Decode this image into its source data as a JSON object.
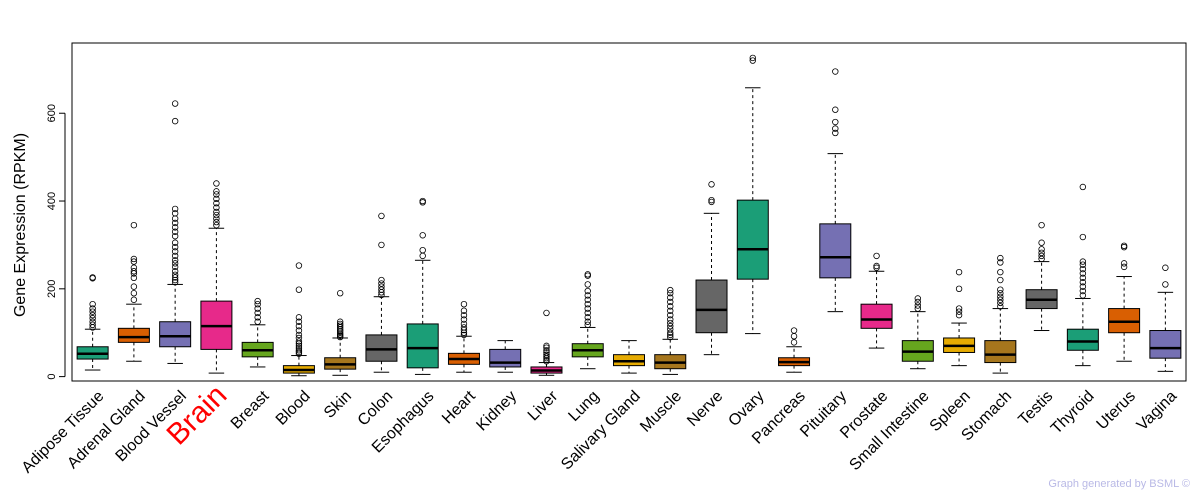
{
  "chart_data": {
    "type": "box",
    "title": "",
    "xlabel": "",
    "ylabel": "Gene Expression (RPKM)",
    "ylim": [
      -10,
      760
    ],
    "yticks": [
      0,
      200,
      400,
      600
    ],
    "highlight": "Brain",
    "highlight_color": "#ff0000",
    "boxes": [
      {
        "name": "Adipose Tissue",
        "color": "#1b9e77",
        "whisker_low": 15,
        "q1": 40,
        "median": 52,
        "q3": 68,
        "whisker_high": 108,
        "outliers": [
          112,
          118,
          125,
          133,
          140,
          148,
          155,
          165,
          224,
          226
        ]
      },
      {
        "name": "Adrenal Gland",
        "color": "#d95f02",
        "whisker_low": 35,
        "q1": 78,
        "median": 90,
        "q3": 110,
        "whisker_high": 165,
        "outliers": [
          175,
          190,
          205,
          225,
          235,
          240,
          248,
          262,
          268,
          345
        ]
      },
      {
        "name": "Blood Vessel",
        "color": "#7570b3",
        "whisker_low": 30,
        "q1": 68,
        "median": 92,
        "q3": 125,
        "whisker_high": 210,
        "outliers": [
          215,
          220,
          226,
          232,
          240,
          250,
          258,
          265,
          275,
          285,
          295,
          305,
          320,
          330,
          340,
          350,
          360,
          372,
          382,
          582,
          622
        ]
      },
      {
        "name": "Brain",
        "color": "#e7298a",
        "whisker_low": 8,
        "q1": 62,
        "median": 115,
        "q3": 172,
        "whisker_high": 338,
        "outliers": [
          345,
          352,
          360,
          368,
          375,
          385,
          395,
          405,
          415,
          422,
          440
        ]
      },
      {
        "name": "Breast",
        "color": "#66a61e",
        "whisker_low": 22,
        "q1": 45,
        "median": 60,
        "q3": 78,
        "whisker_high": 118,
        "outliers": [
          125,
          135,
          145,
          155,
          165,
          172
        ]
      },
      {
        "name": "Blood",
        "color": "#e6ab02",
        "whisker_low": 2,
        "q1": 8,
        "median": 15,
        "q3": 25,
        "whisker_high": 48,
        "outliers": [
          52,
          56,
          60,
          65,
          70,
          75,
          80,
          88,
          95,
          105,
          115,
          125,
          135,
          198,
          253
        ]
      },
      {
        "name": "Skin",
        "color": "#a6761d",
        "whisker_low": 3,
        "q1": 17,
        "median": 28,
        "q3": 43,
        "whisker_high": 88,
        "outliers": [
          90,
          93,
          96,
          100,
          104,
          108,
          112,
          116,
          120,
          125,
          190
        ]
      },
      {
        "name": "Colon",
        "color": "#666666",
        "whisker_low": 10,
        "q1": 35,
        "median": 62,
        "q3": 95,
        "whisker_high": 182,
        "outliers": [
          186,
          192,
          198,
          205,
          212,
          220,
          300,
          366
        ]
      },
      {
        "name": "Esophagus",
        "color": "#1b9e77",
        "whisker_low": 5,
        "q1": 20,
        "median": 65,
        "q3": 120,
        "whisker_high": 265,
        "outliers": [
          275,
          288,
          322,
          397,
          400
        ]
      },
      {
        "name": "Heart",
        "color": "#d95f02",
        "whisker_low": 10,
        "q1": 28,
        "median": 40,
        "q3": 53,
        "whisker_high": 92,
        "outliers": [
          95,
          100,
          106,
          112,
          120,
          130,
          140,
          150,
          165
        ]
      },
      {
        "name": "Kidney",
        "color": "#7570b3",
        "whisker_low": 10,
        "q1": 22,
        "median": 32,
        "q3": 62,
        "whisker_high": 82,
        "outliers": []
      },
      {
        "name": "Liver",
        "color": "#e7298a",
        "whisker_low": 3,
        "q1": 8,
        "median": 14,
        "q3": 22,
        "whisker_high": 32,
        "outliers": [
          35,
          38,
          42,
          46,
          50,
          55,
          60,
          66,
          70,
          145
        ]
      },
      {
        "name": "Lung",
        "color": "#66a61e",
        "whisker_low": 18,
        "q1": 45,
        "median": 60,
        "q3": 75,
        "whisker_high": 112,
        "outliers": [
          118,
          125,
          135,
          145,
          155,
          165,
          175,
          185,
          195,
          210,
          230,
          233
        ]
      },
      {
        "name": "Salivary Gland",
        "color": "#e6ab02",
        "whisker_low": 8,
        "q1": 25,
        "median": 35,
        "q3": 50,
        "whisker_high": 82,
        "outliers": []
      },
      {
        "name": "Muscle",
        "color": "#a6761d",
        "whisker_low": 5,
        "q1": 18,
        "median": 32,
        "q3": 50,
        "whisker_high": 85,
        "outliers": [
          90,
          95,
          100,
          108,
          115,
          122,
          130,
          140,
          150,
          160,
          170,
          180,
          190,
          197
        ]
      },
      {
        "name": "Nerve",
        "color": "#666666",
        "whisker_low": 50,
        "q1": 100,
        "median": 152,
        "q3": 220,
        "whisker_high": 372,
        "outliers": [
          398,
          402,
          438
        ]
      },
      {
        "name": "Ovary",
        "color": "#1b9e77",
        "whisker_low": 98,
        "q1": 222,
        "median": 290,
        "q3": 402,
        "whisker_high": 658,
        "outliers": [
          720,
          726
        ]
      },
      {
        "name": "Pancreas",
        "color": "#d95f02",
        "whisker_low": 10,
        "q1": 25,
        "median": 33,
        "q3": 43,
        "whisker_high": 68,
        "outliers": [
          78,
          92,
          105
        ]
      },
      {
        "name": "Pituitary",
        "color": "#7570b3",
        "whisker_low": 148,
        "q1": 225,
        "median": 272,
        "q3": 348,
        "whisker_high": 508,
        "outliers": [
          555,
          565,
          580,
          608,
          695
        ]
      },
      {
        "name": "Prostate",
        "color": "#e7298a",
        "whisker_low": 65,
        "q1": 110,
        "median": 130,
        "q3": 165,
        "whisker_high": 240,
        "outliers": [
          248,
          252,
          275
        ]
      },
      {
        "name": "Small Intestine",
        "color": "#66a61e",
        "whisker_low": 18,
        "q1": 35,
        "median": 57,
        "q3": 82,
        "whisker_high": 148,
        "outliers": [
          155,
          162,
          170,
          178
        ]
      },
      {
        "name": "Spleen",
        "color": "#e6ab02",
        "whisker_low": 25,
        "q1": 55,
        "median": 70,
        "q3": 88,
        "whisker_high": 122,
        "outliers": [
          140,
          148,
          155,
          200,
          238
        ]
      },
      {
        "name": "Stomach",
        "color": "#a6761d",
        "whisker_low": 8,
        "q1": 32,
        "median": 50,
        "q3": 82,
        "whisker_high": 155,
        "outliers": [
          160,
          168,
          175,
          182,
          190,
          198,
          220,
          238,
          260,
          270
        ]
      },
      {
        "name": "Testis",
        "color": "#666666",
        "whisker_low": 105,
        "q1": 155,
        "median": 175,
        "q3": 198,
        "whisker_high": 262,
        "outliers": [
          268,
          275,
          282,
          290,
          305,
          345
        ]
      },
      {
        "name": "Thyroid",
        "color": "#1b9e77",
        "whisker_low": 25,
        "q1": 60,
        "median": 80,
        "q3": 108,
        "whisker_high": 178,
        "outliers": [
          185,
          195,
          205,
          215,
          225,
          235,
          245,
          255,
          262,
          318,
          432
        ]
      },
      {
        "name": "Uterus",
        "color": "#d95f02",
        "whisker_low": 35,
        "q1": 100,
        "median": 125,
        "q3": 155,
        "whisker_high": 228,
        "outliers": [
          250,
          258,
          295,
          298
        ]
      },
      {
        "name": "Vagina",
        "color": "#7570b3",
        "whisker_low": 12,
        "q1": 42,
        "median": 65,
        "q3": 105,
        "whisker_high": 192,
        "outliers": [
          210,
          248
        ]
      }
    ]
  },
  "footer": {
    "credit": "Graph generated by BSML ©"
  }
}
